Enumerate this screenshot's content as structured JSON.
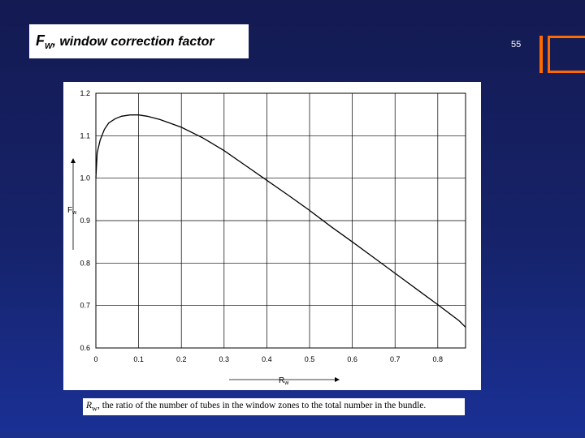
{
  "slide": {
    "title_symbol": "F",
    "title_subscript": "W",
    "title_text": ", window correction factor",
    "page_number": "55",
    "caption_symbol": "R",
    "caption_subscript": "w",
    "caption_text": ", the ratio of the number of tubes in  the window zones to the total number in the bundle."
  },
  "colors": {
    "background_top": "#141a52",
    "background_bottom": "#1a3096",
    "accent": "#ff6a00",
    "panel": "#ffffff",
    "curve": "#000000",
    "grid": "#000000"
  },
  "chart_data": {
    "type": "line",
    "title": "",
    "xlabel": "R",
    "xlabel_subscript": "w",
    "ylabel": "F",
    "ylabel_subscript": "w",
    "xlim": [
      0,
      0.865
    ],
    "ylim": [
      0.6,
      1.2
    ],
    "x_ticks": [
      0,
      0.1,
      0.2,
      0.3,
      0.4,
      0.5,
      0.6,
      0.7,
      0.8
    ],
    "x_tick_labels": [
      "0",
      "0.1",
      "0.2",
      "0.3",
      "0.4",
      "0.5",
      "0.6",
      "0.7",
      "0.8"
    ],
    "y_ticks": [
      0.6,
      0.7,
      0.8,
      0.9,
      1.0,
      1.1,
      1.2
    ],
    "y_tick_labels": [
      "0.6",
      "0.7",
      "0.8",
      "0.9",
      "1.0",
      "1.1",
      "1.2"
    ],
    "grid": true,
    "series": [
      {
        "x": [
          0.0,
          0.003,
          0.01,
          0.02,
          0.03,
          0.045,
          0.06,
          0.08,
          0.1,
          0.12,
          0.15,
          0.2,
          0.25,
          0.3,
          0.35,
          0.4,
          0.45,
          0.5,
          0.55,
          0.6,
          0.65,
          0.7,
          0.75,
          0.8,
          0.85,
          0.865
        ],
        "y": [
          1.0,
          1.06,
          1.09,
          1.115,
          1.13,
          1.14,
          1.146,
          1.149,
          1.149,
          1.146,
          1.138,
          1.12,
          1.095,
          1.065,
          1.03,
          0.995,
          0.96,
          0.924,
          0.886,
          0.85,
          0.813,
          0.776,
          0.739,
          0.702,
          0.664,
          0.649
        ]
      }
    ]
  }
}
